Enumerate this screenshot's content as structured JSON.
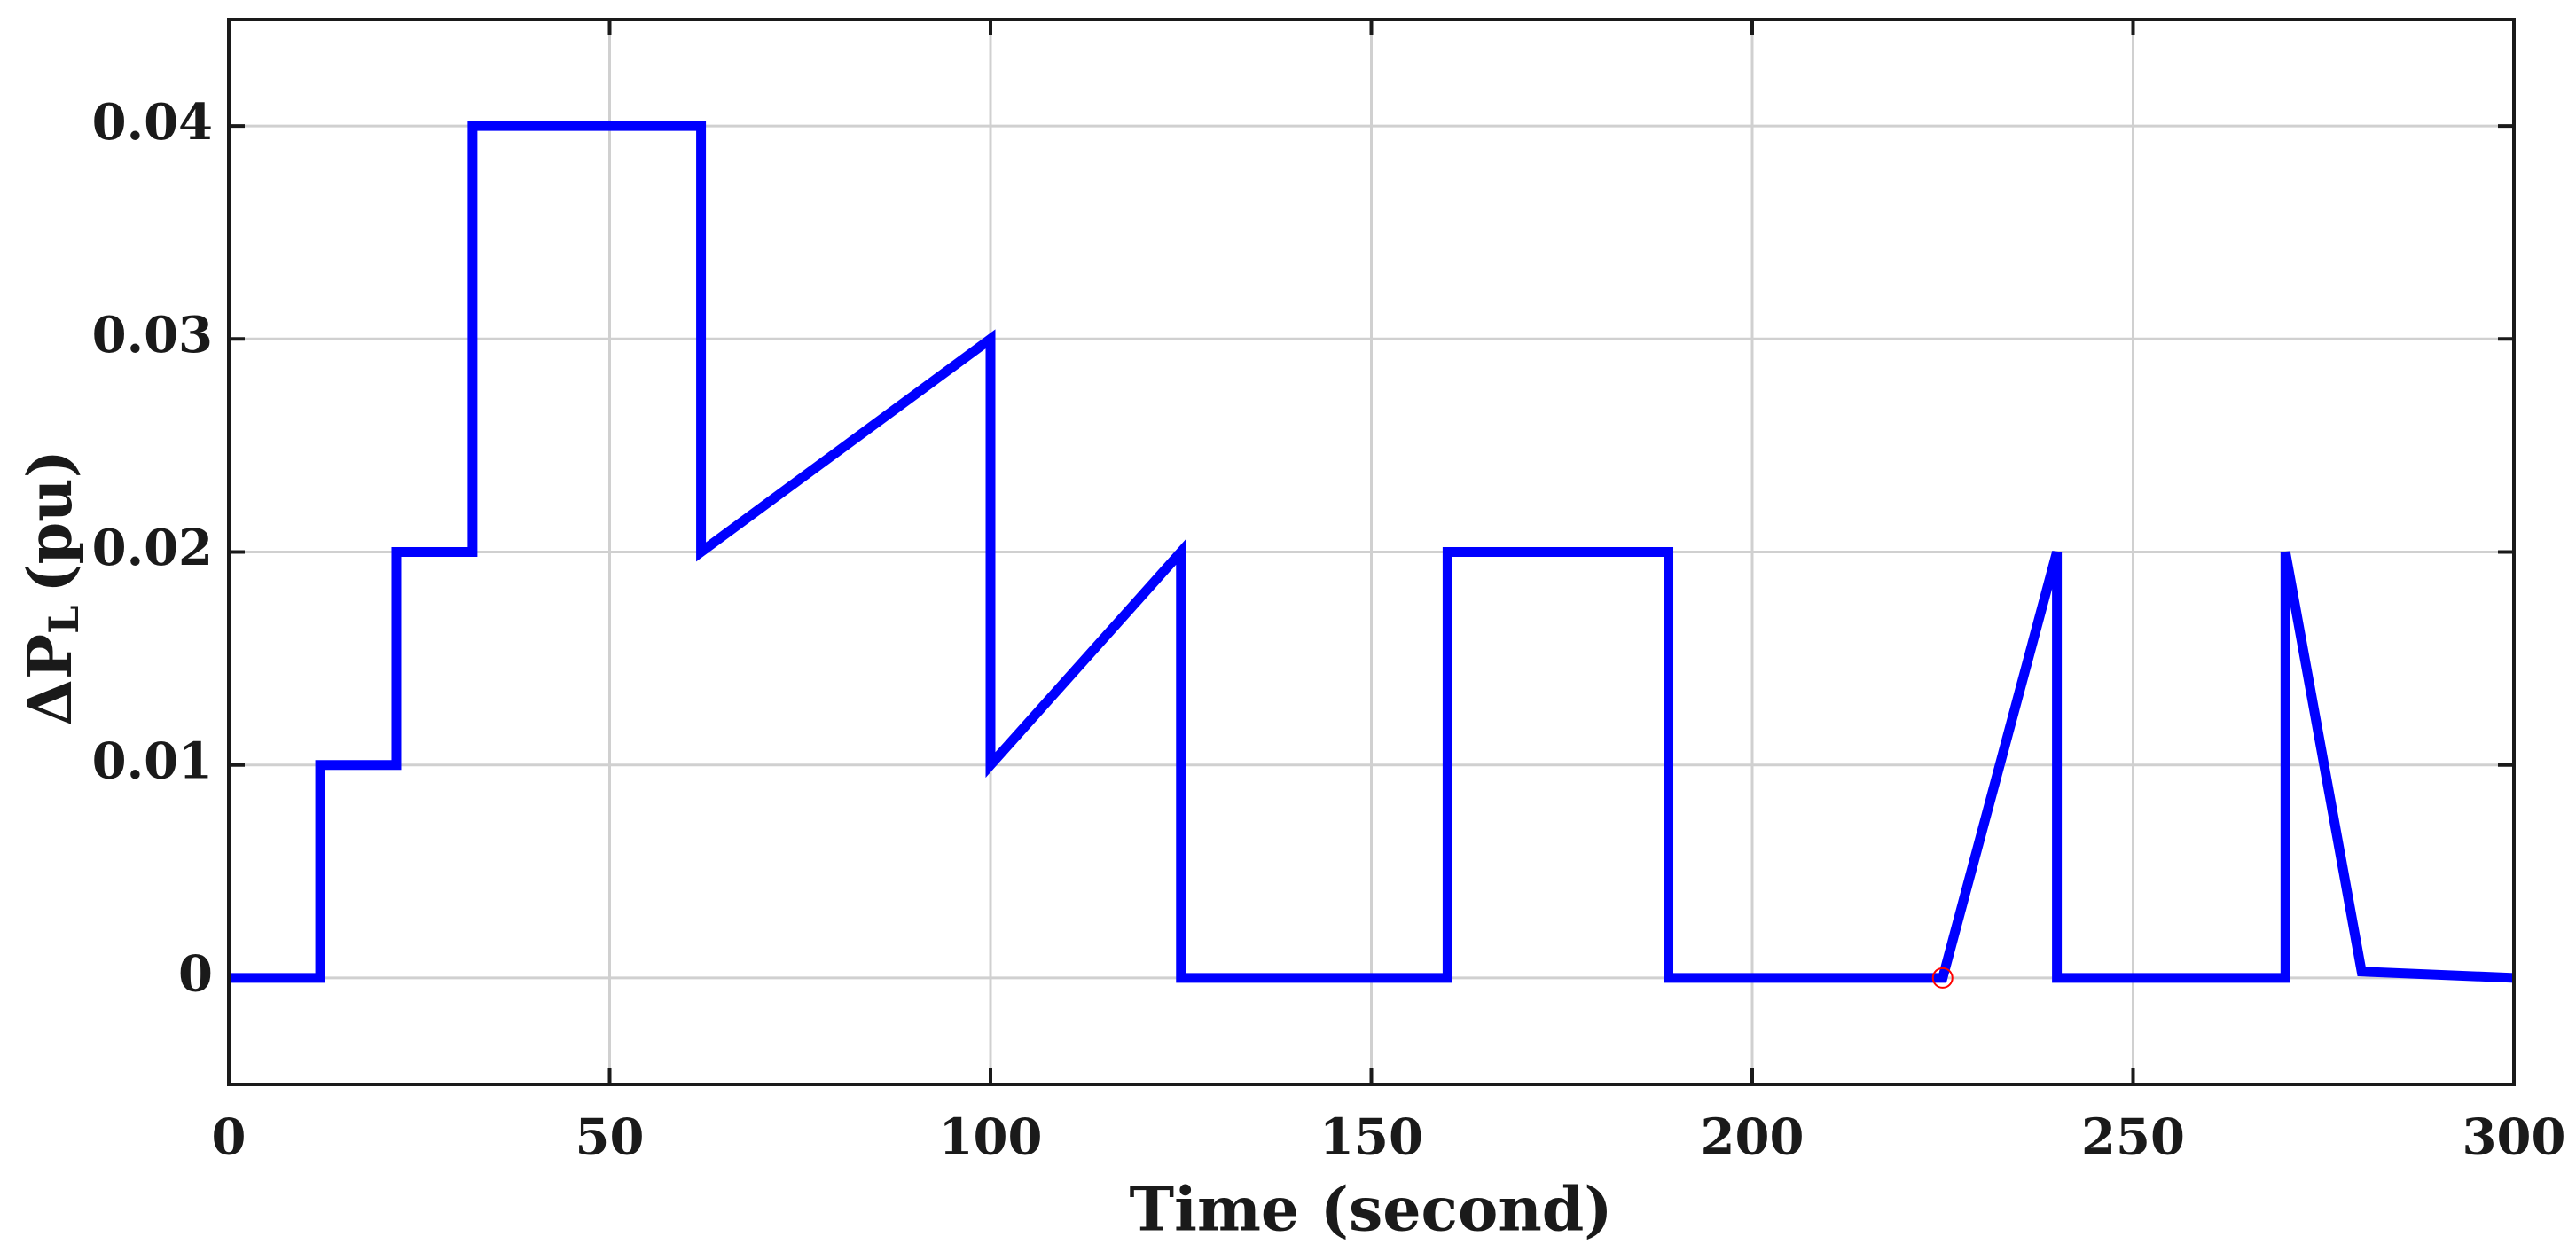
{
  "chart_data": {
    "type": "line",
    "xlabel": "Time (second)",
    "ylabel": {
      "main": "ΔP",
      "sub": "L",
      "tail": "(pu)"
    },
    "x": [
      0,
      12,
      12,
      22,
      22,
      32,
      32,
      62,
      62,
      100,
      100,
      125,
      125,
      160,
      160,
      189,
      189,
      225,
      240,
      240,
      270,
      270,
      280,
      300
    ],
    "series": [
      {
        "color": "#0000ff",
        "values": [
          0,
          0,
          0.01,
          0.01,
          0.02,
          0.02,
          0.04,
          0.04,
          0.02,
          0.03,
          0.01,
          0.02,
          0,
          0,
          0.02,
          0.02,
          0,
          0,
          0.02,
          0,
          0,
          0.02,
          0.0003,
          0
        ]
      }
    ],
    "highlight": {
      "x": 225,
      "y": 0,
      "color": "#ff0000"
    },
    "xlim": [
      0,
      300
    ],
    "xticks": [
      0,
      50,
      100,
      150,
      200,
      250,
      300
    ],
    "ylim": [
      -0.005,
      0.045
    ],
    "yticks": [
      0,
      0.01,
      0.02,
      0.03,
      0.04
    ],
    "grid": true
  }
}
